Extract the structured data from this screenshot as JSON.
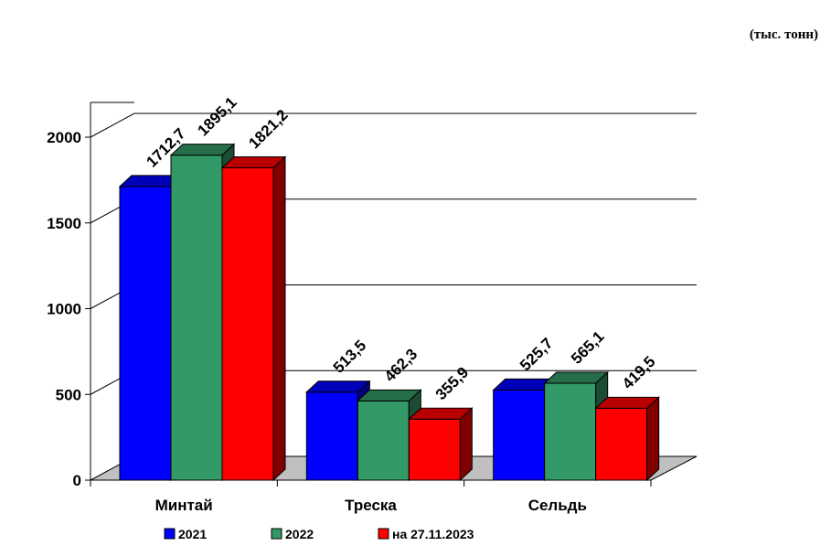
{
  "units_note": "(тыс. тонн)",
  "colors": {
    "series_2021": "#0000ff",
    "series_2022": "#339966",
    "series_2023": "#ff0000",
    "floor": "#c0c0c0"
  },
  "chart_data": {
    "type": "bar",
    "style": "3d-clustered-column",
    "categories": [
      "Минтай",
      "Треска",
      "Сельдь"
    ],
    "series": [
      {
        "name": "2021",
        "values": [
          1712.7,
          513.5,
          525.7
        ],
        "labels": [
          "1712,7",
          "513,5",
          "525,7"
        ]
      },
      {
        "name": "2022",
        "values": [
          1895.1,
          462.3,
          565.1
        ],
        "labels": [
          "1895,1",
          "462,3",
          "565,1"
        ]
      },
      {
        "name": "на 27.11.2023",
        "values": [
          1821.2,
          355.9,
          419.5
        ],
        "labels": [
          "1821,2",
          "355,9",
          "419,5"
        ]
      }
    ],
    "yticks": [
      "0",
      "500",
      "1000",
      "1500",
      "2000"
    ],
    "ylim": [
      0,
      2000
    ],
    "grid": true,
    "legend_position": "bottom"
  }
}
